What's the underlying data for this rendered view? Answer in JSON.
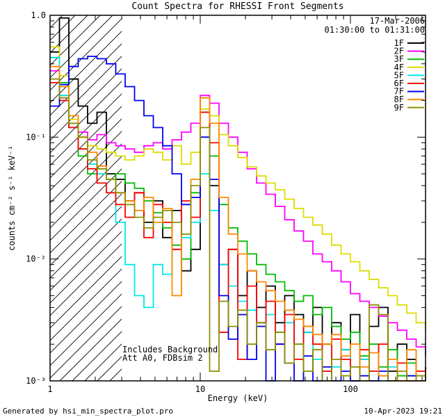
{
  "footer": {
    "left": "Generated by hsi_min_spectra_plot.pro",
    "right": "10-Apr-2023 19:21"
  },
  "chart_data": {
    "type": "line",
    "mode": "step-histogram",
    "title": "Count Spectra for RHESSI Front Segments",
    "xlabel": "Energy (keV)",
    "ylabel": "counts cm⁻² s⁻¹ keV⁻¹",
    "xscale": "log",
    "yscale": "log",
    "xlim": [
      1,
      316.23
    ],
    "ylim": [
      0.001,
      1
    ],
    "grid": false,
    "legend_position": "top-right",
    "header": {
      "date": "17-Mar-2006",
      "time_range": "01:30:00 to 01:31:00"
    },
    "annotations": [
      "Includes Background",
      "Att A0, FDBsim 2"
    ],
    "hatch_region": {
      "xmin": 1,
      "xmax": 3
    },
    "xticks": [
      {
        "v": 1,
        "label": "1"
      },
      {
        "v": 10,
        "label": "10"
      },
      {
        "v": 100,
        "label": "100"
      }
    ],
    "yticks": [
      {
        "v": 1,
        "label": "1.0"
      },
      {
        "v": 0.1,
        "label": "10⁻¹"
      },
      {
        "v": 0.01,
        "label": "10⁻²"
      },
      {
        "v": 0.001,
        "label": "10⁻³"
      }
    ],
    "x": [
      1.0,
      1.155,
      1.334,
      1.54,
      1.778,
      2.054,
      2.371,
      2.738,
      3.162,
      3.652,
      4.217,
      4.87,
      5.623,
      6.494,
      7.499,
      8.66,
      10.0,
      11.548,
      13.335,
      15.399,
      17.783,
      20.535,
      23.714,
      27.384,
      31.623,
      36.517,
      42.17,
      48.697,
      56.234,
      64.938,
      74.989,
      86.596,
      100.0,
      115.478,
      133.352,
      153.993,
      177.828,
      205.353,
      237.137,
      273.842,
      316.228
    ],
    "series": [
      {
        "name": "1F",
        "color": "#000000",
        "values": [
          0.5,
          0.95,
          0.3,
          0.18,
          0.13,
          0.16,
          0.05,
          0.045,
          0.03,
          0.035,
          0.02,
          0.03,
          0.015,
          0.025,
          0.008,
          0.012,
          0.16,
          0.04,
          0.009,
          0.012,
          0.005,
          0.008,
          0.004,
          0.006,
          0.003,
          0.005,
          0.0035,
          0.0025,
          0.004,
          0.002,
          0.003,
          0.0018,
          0.0035,
          0.0015,
          0.0028,
          0.004,
          0.0012,
          0.002,
          0.0015,
          0.001,
          0.0013
        ]
      },
      {
        "name": "2F",
        "color": "#ff00ff",
        "values": [
          0.35,
          0.22,
          0.13,
          0.11,
          0.095,
          0.105,
          0.09,
          0.085,
          0.08,
          0.075,
          0.085,
          0.09,
          0.08,
          0.095,
          0.11,
          0.13,
          0.22,
          0.19,
          0.13,
          0.1,
          0.075,
          0.055,
          0.042,
          0.034,
          0.027,
          0.021,
          0.017,
          0.014,
          0.011,
          0.0095,
          0.008,
          0.0065,
          0.0052,
          0.0045,
          0.004,
          0.0034,
          0.003,
          0.0026,
          0.0022,
          0.0019,
          0.0016
        ]
      },
      {
        "name": "3F",
        "color": "#00bb00",
        "values": [
          0.45,
          0.28,
          0.13,
          0.07,
          0.05,
          0.055,
          0.045,
          0.05,
          0.042,
          0.038,
          0.03,
          0.024,
          0.018,
          0.013,
          0.01,
          0.035,
          0.16,
          0.07,
          0.028,
          0.018,
          0.014,
          0.011,
          0.009,
          0.0075,
          0.0065,
          0.0055,
          0.0045,
          0.005,
          0.0035,
          0.004,
          0.0028,
          0.0022,
          0.0025,
          0.0016,
          0.002,
          0.0013,
          0.0018,
          0.0011,
          0.0014,
          0.001,
          0.0012
        ]
      },
      {
        "name": "4F",
        "color": "#dcdc00",
        "values": [
          0.55,
          0.32,
          0.14,
          0.1,
          0.085,
          0.08,
          0.075,
          0.07,
          0.065,
          0.07,
          0.08,
          0.075,
          0.065,
          0.085,
          0.06,
          0.075,
          0.17,
          0.15,
          0.105,
          0.085,
          0.068,
          0.057,
          0.048,
          0.042,
          0.037,
          0.031,
          0.026,
          0.022,
          0.019,
          0.016,
          0.013,
          0.011,
          0.0095,
          0.008,
          0.0068,
          0.0058,
          0.005,
          0.0042,
          0.0036,
          0.003,
          0.0026
        ]
      },
      {
        "name": "5F",
        "color": "#00e8e8",
        "values": [
          0.45,
          0.22,
          0.12,
          0.08,
          0.06,
          0.05,
          0.045,
          0.02,
          0.009,
          0.005,
          0.004,
          0.009,
          0.0075,
          0.012,
          0.015,
          0.02,
          0.05,
          0.025,
          0.009,
          0.006,
          0.0045,
          0.0038,
          0.003,
          0.0035,
          0.0025,
          0.003,
          0.002,
          0.0025,
          0.0015,
          0.002,
          0.0013,
          0.0018,
          0.001,
          0.0015,
          0.0012,
          0.001,
          0.0013,
          0.001,
          0.0011,
          0.001,
          0.001
        ]
      },
      {
        "name": "6F",
        "color": "#ff0000",
        "values": [
          0.28,
          0.2,
          0.12,
          0.08,
          0.055,
          0.042,
          0.035,
          0.028,
          0.022,
          0.035,
          0.015,
          0.028,
          0.02,
          0.012,
          0.03,
          0.022,
          0.16,
          0.09,
          0.0025,
          0.012,
          0.0015,
          0.006,
          0.003,
          0.0045,
          0.002,
          0.0035,
          0.0015,
          0.0028,
          0.002,
          0.0012,
          0.0022,
          0.0015,
          0.001,
          0.0018,
          0.0012,
          0.002,
          0.001,
          0.0014,
          0.001,
          0.0012,
          0.001
        ]
      },
      {
        "name": "7F",
        "color": "#0000ee",
        "values": [
          0.18,
          0.27,
          0.38,
          0.44,
          0.46,
          0.44,
          0.4,
          0.33,
          0.26,
          0.2,
          0.15,
          0.12,
          0.085,
          0.05,
          0.028,
          0.032,
          0.1,
          0.045,
          0.005,
          0.0022,
          0.0035,
          0.0015,
          0.0028,
          0.001,
          0.002,
          0.0014,
          0.001,
          0.0016,
          0.001,
          0.0013,
          0.001,
          0.0012,
          0.001,
          0.0011,
          0.001,
          0.0012,
          0.001,
          0.001,
          0.0011,
          0.001,
          0.001
        ]
      },
      {
        "name": "8F",
        "color": "#ff8800",
        "values": [
          0.38,
          0.26,
          0.15,
          0.1,
          0.075,
          0.058,
          0.045,
          0.035,
          0.03,
          0.025,
          0.032,
          0.02,
          0.026,
          0.005,
          0.016,
          0.045,
          0.21,
          0.13,
          0.032,
          0.016,
          0.011,
          0.008,
          0.0065,
          0.0055,
          0.0045,
          0.0038,
          0.0032,
          0.0028,
          0.0024,
          0.002,
          0.0024,
          0.0016,
          0.002,
          0.0013,
          0.0017,
          0.0011,
          0.0015,
          0.001,
          0.0018,
          0.001,
          0.0012
        ]
      },
      {
        "name": "9F",
        "color": "#8f8f00",
        "values": [
          0.3,
          0.21,
          0.13,
          0.1,
          0.065,
          0.055,
          0.045,
          0.035,
          0.028,
          0.022,
          0.018,
          0.022,
          0.025,
          0.02,
          0.016,
          0.04,
          0.12,
          0.0012,
          0.0045,
          0.0028,
          0.0038,
          0.002,
          0.003,
          0.0018,
          0.0025,
          0.0014,
          0.002,
          0.0012,
          0.0018,
          0.001,
          0.0015,
          0.0011,
          0.0013,
          0.001,
          0.0042,
          0.0035,
          0.001,
          0.0012,
          0.001,
          0.0011,
          0.001
        ]
      }
    ]
  }
}
